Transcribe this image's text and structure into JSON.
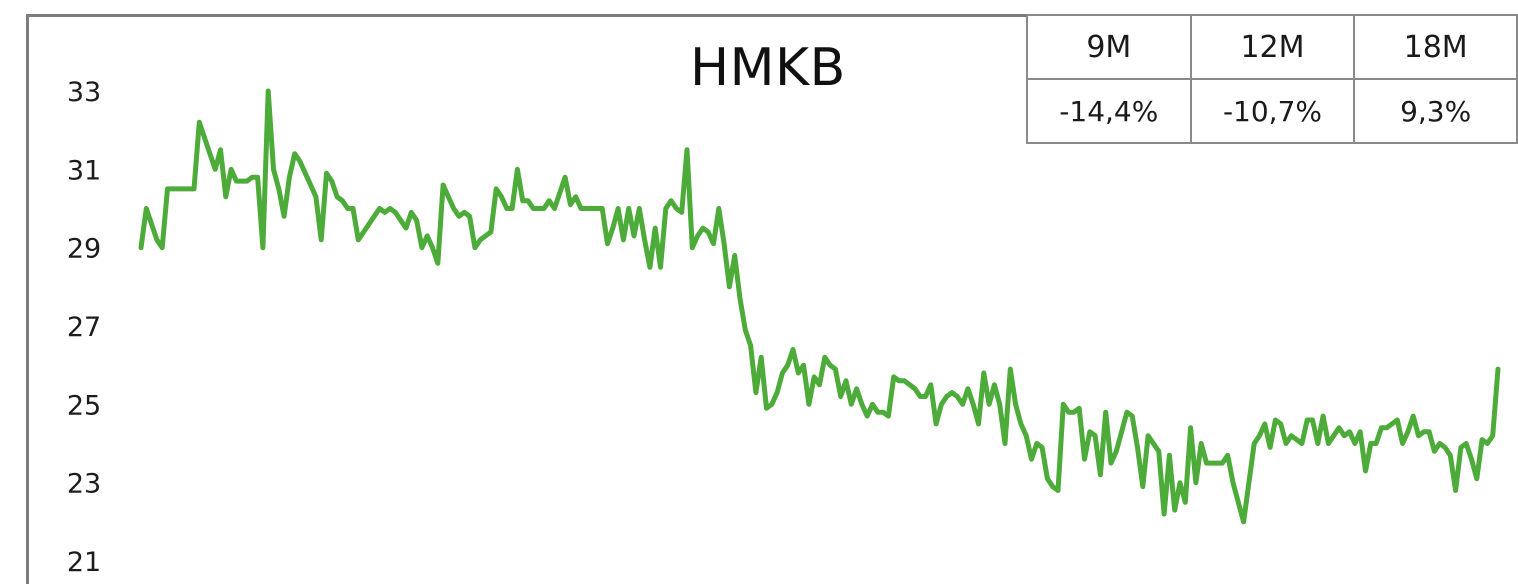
{
  "chart_data": {
    "type": "line",
    "title": "HMKB",
    "xlabel": "",
    "ylabel": "",
    "ylim": [
      21,
      33
    ],
    "y_ticks": [
      "33",
      "31",
      "29",
      "27",
      "25",
      "23",
      "21"
    ],
    "grid": false,
    "color": "#4cab39",
    "series": [
      {
        "values": [
          29.0,
          30.0,
          29.6,
          29.2,
          29.0,
          30.5,
          30.5,
          30.5,
          30.5,
          30.5,
          30.5,
          32.2,
          31.8,
          31.4,
          31.0,
          31.5,
          30.3,
          31.0,
          30.7,
          30.7,
          30.7,
          30.8,
          30.8,
          29.0,
          33.0,
          31.0,
          30.5,
          29.8,
          30.8,
          31.4,
          31.2,
          30.9,
          30.6,
          30.3,
          29.2,
          30.9,
          30.7,
          30.3,
          30.2,
          30.0,
          30.0,
          29.2,
          29.4,
          29.6,
          29.8,
          30.0,
          29.9,
          30.0,
          29.9,
          29.7,
          29.5,
          29.9,
          29.7,
          29.0,
          29.3,
          29.0,
          28.6,
          30.6,
          30.3,
          30.0,
          29.8,
          29.9,
          29.8,
          29.0,
          29.2,
          29.3,
          29.4,
          30.5,
          30.3,
          30.0,
          30.0,
          31.0,
          30.2,
          30.2,
          30.0,
          30.0,
          30.0,
          30.2,
          30.0,
          30.4,
          30.8,
          30.1,
          30.3,
          30.0,
          30.0,
          30.0,
          30.0,
          30.0,
          29.1,
          29.5,
          30.0,
          29.2,
          30.0,
          29.3,
          30.0,
          29.2,
          28.5,
          29.5,
          28.5,
          30.0,
          30.2,
          30.0,
          29.9,
          31.5,
          29.0,
          29.3,
          29.5,
          29.4,
          29.1,
          30.0,
          29.1,
          28.0,
          28.8,
          27.7,
          26.9,
          26.5,
          25.3,
          26.2,
          24.9,
          25.0,
          25.3,
          25.8,
          26.0,
          26.4,
          25.8,
          26.0,
          25.0,
          25.7,
          25.5,
          26.2,
          26.0,
          25.9,
          25.2,
          25.6,
          25.0,
          25.4,
          25.0,
          24.7,
          25.0,
          24.8,
          24.8,
          24.7,
          25.7,
          25.6,
          25.6,
          25.5,
          25.4,
          25.2,
          25.2,
          25.5,
          24.5,
          25.0,
          25.2,
          25.3,
          25.2,
          25.0,
          25.4,
          25.0,
          24.5,
          25.8,
          25.0,
          25.5,
          25.0,
          24.0,
          25.9,
          25.0,
          24.5,
          24.2,
          23.6,
          24.0,
          23.9,
          23.1,
          22.9,
          22.8,
          25.0,
          24.8,
          24.8,
          24.9,
          23.6,
          24.3,
          24.2,
          23.2,
          24.8,
          23.5,
          23.8,
          24.3,
          24.8,
          24.7,
          23.9,
          22.9,
          24.2,
          24.0,
          23.8,
          22.2,
          23.7,
          22.3,
          23.0,
          22.5,
          24.4,
          23.0,
          24.0,
          23.5,
          23.5,
          23.5,
          23.5,
          23.7,
          23.0,
          22.5,
          22.0,
          23.0,
          24.0,
          24.2,
          24.5,
          23.9,
          24.6,
          24.5,
          24.0,
          24.2,
          24.1,
          24.0,
          24.6,
          24.6,
          24.0,
          24.7,
          24.0,
          24.2,
          24.4,
          24.2,
          24.3,
          24.0,
          24.3,
          23.3,
          24.0,
          24.0,
          24.4,
          24.4,
          24.5,
          24.6,
          24.0,
          24.3,
          24.7,
          24.2,
          24.3,
          24.3,
          23.8,
          24.0,
          23.9,
          23.7,
          22.8,
          23.9,
          24.0,
          23.6,
          23.1,
          24.1,
          24.0,
          24.2,
          25.9
        ]
      }
    ]
  },
  "table": {
    "headers": [
      "9M",
      "12M",
      "18M"
    ],
    "values": [
      "-14,4%",
      "-10,7%",
      "9,3%"
    ]
  }
}
